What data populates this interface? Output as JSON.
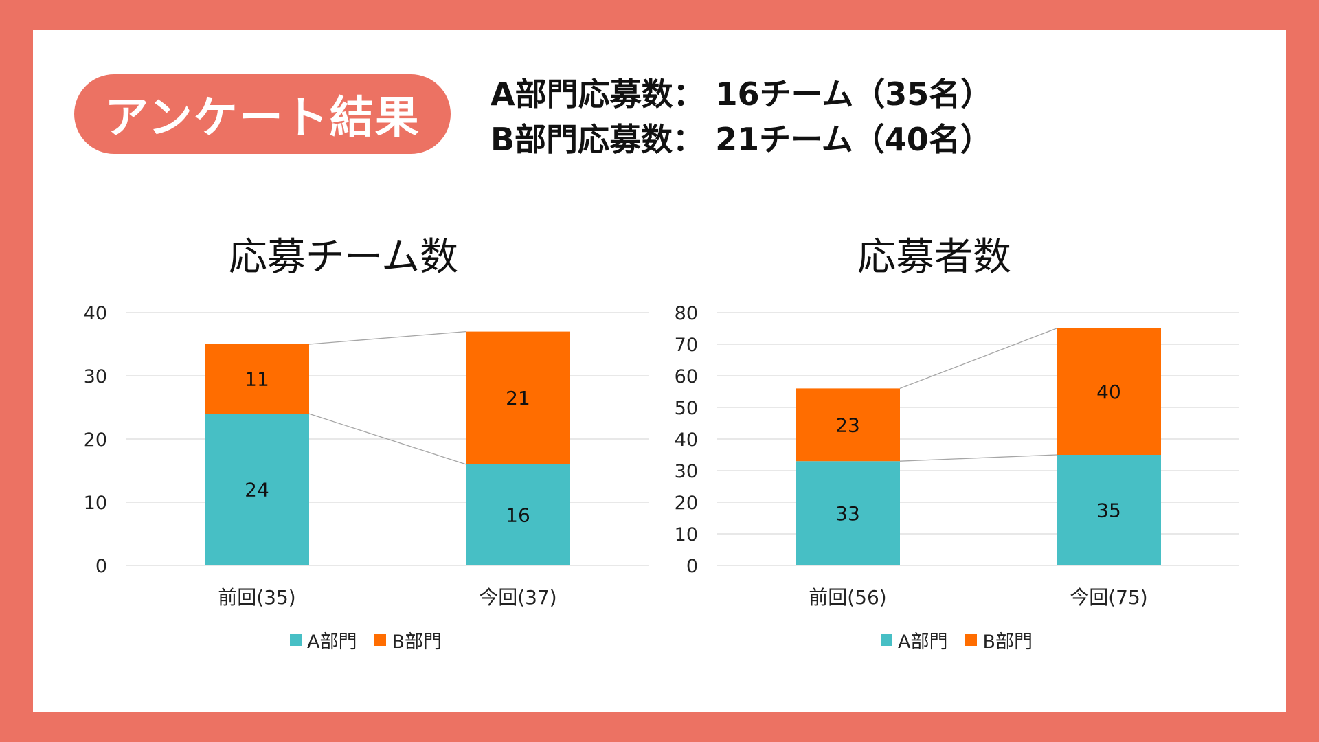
{
  "header": {
    "title": "アンケート結果",
    "summary_a": "A部門応募数： 16チーム（35名）",
    "summary_b": "B部門応募数： 21チーム（40名）"
  },
  "colors": {
    "background": "#EC7263",
    "card": "#FFFFFF",
    "series_a": "#47BFC5",
    "series_b": "#FF6D00",
    "grid": "#D9D9D9",
    "connector": "#A6A6A6"
  },
  "legend": {
    "a": "A部門",
    "b": "B部門"
  },
  "chart_data": [
    {
      "type": "bar",
      "stacked": true,
      "title": "応募チーム数",
      "categories": [
        "前回(35)",
        "今回(37)"
      ],
      "series": [
        {
          "name": "A部門",
          "values": [
            24,
            16
          ]
        },
        {
          "name": "B部門",
          "values": [
            11,
            21
          ]
        }
      ],
      "xlabel": "",
      "ylabel": "",
      "ylim": [
        0,
        40
      ],
      "yticks": [
        0,
        10,
        20,
        30,
        40
      ],
      "grid": true,
      "series_lines": true,
      "legend": "bottom"
    },
    {
      "type": "bar",
      "stacked": true,
      "title": "応募者数",
      "categories": [
        "前回(56)",
        "今回(75)"
      ],
      "series": [
        {
          "name": "A部門",
          "values": [
            33,
            35
          ]
        },
        {
          "name": "B部門",
          "values": [
            23,
            40
          ]
        }
      ],
      "xlabel": "",
      "ylabel": "",
      "ylim": [
        0,
        80
      ],
      "yticks": [
        0,
        10,
        20,
        30,
        40,
        50,
        60,
        70,
        80
      ],
      "grid": true,
      "series_lines": true,
      "legend": "bottom"
    }
  ]
}
